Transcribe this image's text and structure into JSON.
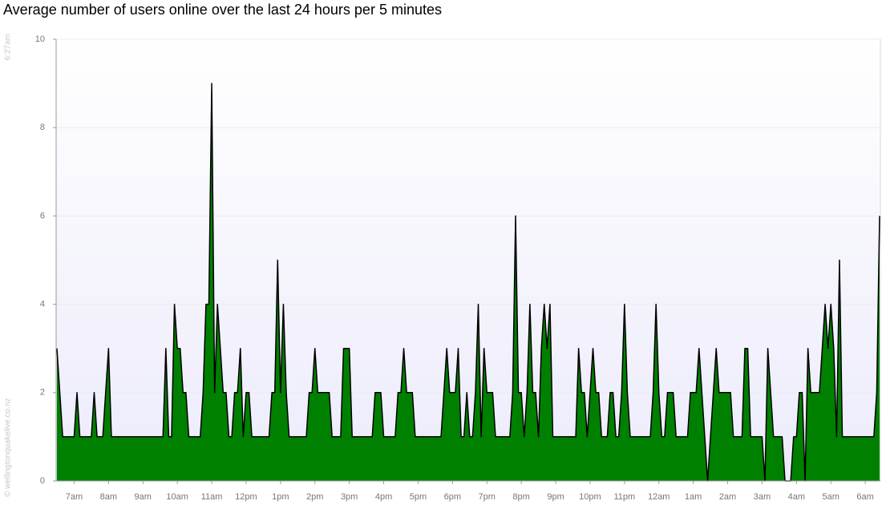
{
  "chart_data": {
    "type": "area",
    "title": "Average number of users online over the last 24 hours per 5 minutes",
    "timestamp": "6:27am",
    "credit": "© wellingtonquakelive.co.nz",
    "color": "#008000",
    "line_color": "#000000",
    "grid": true,
    "ylim": [
      0,
      10
    ],
    "yticks": [
      0,
      2,
      4,
      6,
      8,
      10
    ],
    "categories": [
      null,
      null,
      null,
      null,
      null,
      null,
      "7am",
      null,
      null,
      null,
      null,
      null,
      null,
      null,
      null,
      null,
      null,
      null,
      "8am",
      null,
      null,
      null,
      null,
      null,
      null,
      null,
      null,
      null,
      null,
      null,
      "9am",
      null,
      null,
      null,
      null,
      null,
      null,
      null,
      null,
      null,
      null,
      null,
      "10am",
      null,
      null,
      null,
      null,
      null,
      null,
      null,
      null,
      null,
      null,
      null,
      "11am",
      null,
      null,
      null,
      null,
      null,
      null,
      null,
      null,
      null,
      null,
      null,
      "12pm",
      null,
      null,
      null,
      null,
      null,
      null,
      null,
      null,
      null,
      null,
      null,
      "1pm",
      null,
      null,
      null,
      null,
      null,
      null,
      null,
      null,
      null,
      null,
      null,
      "2pm",
      null,
      null,
      null,
      null,
      null,
      null,
      null,
      null,
      null,
      null,
      null,
      "3pm",
      null,
      null,
      null,
      null,
      null,
      null,
      null,
      null,
      null,
      null,
      null,
      "4pm",
      null,
      null,
      null,
      null,
      null,
      null,
      null,
      null,
      null,
      null,
      null,
      "5pm",
      null,
      null,
      null,
      null,
      null,
      null,
      null,
      null,
      null,
      null,
      null,
      "6pm",
      null,
      null,
      null,
      null,
      null,
      null,
      null,
      null,
      null,
      null,
      null,
      "7pm",
      null,
      null,
      null,
      null,
      null,
      null,
      null,
      null,
      null,
      null,
      null,
      "8pm",
      null,
      null,
      null,
      null,
      null,
      null,
      null,
      null,
      null,
      null,
      null,
      "9pm",
      null,
      null,
      null,
      null,
      null,
      null,
      null,
      null,
      null,
      null,
      null,
      "10pm",
      null,
      null,
      null,
      null,
      null,
      null,
      null,
      null,
      null,
      null,
      null,
      "11pm",
      null,
      null,
      null,
      null,
      null,
      null,
      null,
      null,
      null,
      null,
      null,
      "12am",
      null,
      null,
      null,
      null,
      null,
      null,
      null,
      null,
      null,
      null,
      null,
      "1am",
      null,
      null,
      null,
      null,
      null,
      null,
      null,
      null,
      null,
      null,
      null,
      "2am",
      null,
      null,
      null,
      null,
      null,
      null,
      null,
      null,
      null,
      null,
      null,
      "3am",
      null,
      null,
      null,
      null,
      null,
      null,
      null,
      null,
      null,
      null,
      null,
      "4am",
      null,
      null,
      null,
      null,
      null,
      null,
      null,
      null,
      null,
      null,
      null,
      "5am",
      null,
      null,
      null,
      null,
      null,
      null,
      null,
      null,
      null,
      null,
      null,
      "6am",
      null,
      null,
      null,
      null,
      null
    ],
    "values": [
      3,
      2,
      1,
      1,
      1,
      1,
      1,
      2,
      1,
      1,
      1,
      1,
      1,
      2,
      1,
      1,
      1,
      2,
      3,
      1,
      1,
      1,
      1,
      1,
      1,
      1,
      1,
      1,
      1,
      1,
      1,
      1,
      1,
      1,
      1,
      1,
      1,
      1,
      3,
      1,
      1,
      4,
      3,
      3,
      2,
      2,
      1,
      1,
      1,
      1,
      1,
      2,
      4,
      4,
      9,
      2,
      4,
      3,
      2,
      2,
      1,
      1,
      2,
      2,
      3,
      1,
      2,
      2,
      1,
      1,
      1,
      1,
      1,
      1,
      1,
      2,
      2,
      5,
      2,
      4,
      2,
      1,
      1,
      1,
      1,
      1,
      1,
      1,
      2,
      2,
      3,
      2,
      2,
      2,
      2,
      2,
      1,
      1,
      1,
      1,
      3,
      3,
      3,
      1,
      1,
      1,
      1,
      1,
      1,
      1,
      1,
      2,
      2,
      2,
      1,
      1,
      1,
      1,
      1,
      2,
      2,
      3,
      2,
      2,
      2,
      1,
      1,
      1,
      1,
      1,
      1,
      1,
      1,
      1,
      1,
      2,
      3,
      2,
      2,
      2,
      3,
      1,
      1,
      2,
      1,
      1,
      2,
      4,
      1,
      3,
      2,
      2,
      2,
      1,
      1,
      1,
      1,
      1,
      1,
      2,
      6,
      2,
      2,
      1,
      2,
      4,
      2,
      2,
      1,
      3,
      4,
      3,
      4,
      1,
      1,
      1,
      1,
      1,
      1,
      1,
      1,
      1,
      3,
      2,
      2,
      1,
      2,
      3,
      2,
      2,
      1,
      1,
      1,
      2,
      2,
      1,
      1,
      2,
      4,
      2,
      1,
      1,
      1,
      1,
      1,
      1,
      1,
      1,
      2,
      4,
      2,
      1,
      1,
      2,
      2,
      2,
      1,
      1,
      1,
      1,
      1,
      2,
      2,
      2,
      3,
      2,
      1,
      0,
      1,
      2,
      3,
      2,
      2,
      2,
      2,
      2,
      1,
      1,
      1,
      1,
      3,
      3,
      1,
      1,
      1,
      1,
      1,
      0,
      3,
      2,
      1,
      1,
      1,
      1,
      0,
      0,
      0,
      1,
      1,
      2,
      2,
      0,
      3,
      2,
      2,
      2,
      2,
      3,
      4,
      3,
      4,
      3,
      1,
      5,
      1,
      1,
      1,
      1,
      1,
      1,
      1,
      1,
      1,
      1,
      1,
      1,
      2,
      6
    ]
  }
}
